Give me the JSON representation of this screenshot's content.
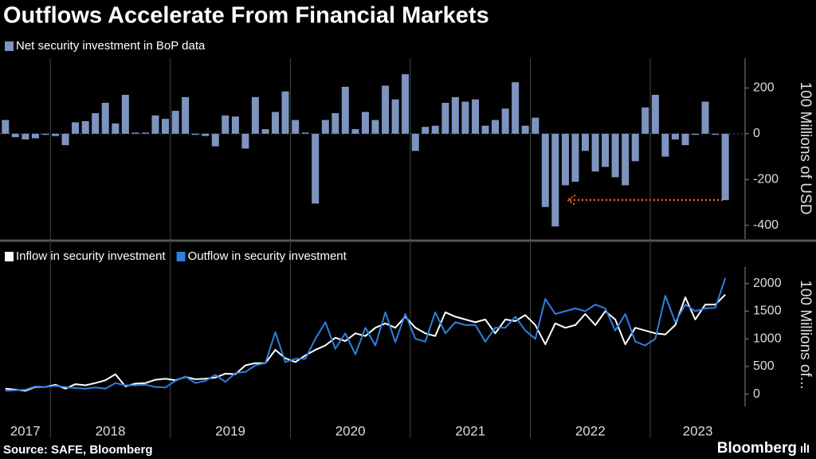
{
  "title": "Outflows Accelerate From Financial Markets",
  "source": "Source: SAFE, Bloomberg",
  "brand": "Bloomberg",
  "chart_data": [
    {
      "type": "bar",
      "y_label": "100 Millions of USD",
      "xlim": [
        2017.58,
        2023.79
      ],
      "ylim": [
        -460,
        330
      ],
      "yticks": [
        -400,
        -200,
        0,
        200
      ],
      "x": [
        2017.625,
        2017.708,
        2017.792,
        2017.875,
        2017.958,
        2018.042,
        2018.125,
        2018.208,
        2018.292,
        2018.375,
        2018.458,
        2018.542,
        2018.625,
        2018.708,
        2018.792,
        2018.875,
        2018.958,
        2019.042,
        2019.125,
        2019.208,
        2019.292,
        2019.375,
        2019.458,
        2019.542,
        2019.625,
        2019.708,
        2019.792,
        2019.875,
        2019.958,
        2020.042,
        2020.125,
        2020.208,
        2020.292,
        2020.375,
        2020.458,
        2020.542,
        2020.625,
        2020.708,
        2020.792,
        2020.875,
        2020.958,
        2021.042,
        2021.125,
        2021.208,
        2021.292,
        2021.375,
        2021.458,
        2021.542,
        2021.625,
        2021.708,
        2021.792,
        2021.875,
        2021.958,
        2022.042,
        2022.125,
        2022.208,
        2022.292,
        2022.375,
        2022.458,
        2022.542,
        2022.625,
        2022.708,
        2022.792,
        2022.875,
        2022.958,
        2023.042,
        2023.125,
        2023.208,
        2023.292,
        2023.375,
        2023.458,
        2023.542,
        2023.625
      ],
      "series": [
        {
          "name": "Net security investment in BoP data",
          "color": "#7d94bf",
          "values": [
            60,
            -15,
            -25,
            -20,
            -5,
            -10,
            -50,
            50,
            55,
            90,
            135,
            45,
            170,
            5,
            5,
            80,
            65,
            100,
            160,
            -5,
            -10,
            -55,
            80,
            75,
            -65,
            160,
            20,
            95,
            185,
            60,
            5,
            -305,
            60,
            90,
            205,
            20,
            95,
            60,
            210,
            150,
            260,
            -75,
            30,
            35,
            135,
            160,
            140,
            150,
            35,
            60,
            110,
            225,
            35,
            70,
            -320,
            -405,
            -225,
            -210,
            -75,
            -165,
            -145,
            -190,
            -225,
            -120,
            115,
            170,
            -100,
            -25,
            -50,
            -5,
            140,
            -5,
            -290
          ]
        }
      ]
    },
    {
      "type": "line",
      "y_label": "100 Millions of...",
      "xlim": [
        2017.58,
        2023.79
      ],
      "xticks": [
        2018,
        2019,
        2020,
        2021,
        2022,
        2023
      ],
      "x_labels": [
        "2017",
        "2018",
        "2019",
        "2020",
        "2021",
        "2022",
        "2023"
      ],
      "ylim": [
        -150,
        2300
      ],
      "yticks": [
        0,
        500,
        1000,
        1500,
        2000
      ],
      "x": [
        2017.625,
        2017.708,
        2017.792,
        2017.875,
        2017.958,
        2018.042,
        2018.125,
        2018.208,
        2018.292,
        2018.375,
        2018.458,
        2018.542,
        2018.625,
        2018.708,
        2018.792,
        2018.875,
        2018.958,
        2019.042,
        2019.125,
        2019.208,
        2019.292,
        2019.375,
        2019.458,
        2019.542,
        2019.625,
        2019.708,
        2019.792,
        2019.875,
        2019.958,
        2020.042,
        2020.125,
        2020.208,
        2020.292,
        2020.375,
        2020.458,
        2020.542,
        2020.625,
        2020.708,
        2020.792,
        2020.875,
        2020.958,
        2021.042,
        2021.125,
        2021.208,
        2021.292,
        2021.375,
        2021.458,
        2021.542,
        2021.625,
        2021.708,
        2021.792,
        2021.875,
        2021.958,
        2022.042,
        2022.125,
        2022.208,
        2022.292,
        2022.375,
        2022.458,
        2022.542,
        2022.625,
        2022.708,
        2022.792,
        2022.875,
        2022.958,
        2023.042,
        2023.125,
        2023.208,
        2023.292,
        2023.375,
        2023.458,
        2023.542,
        2023.625
      ],
      "series": [
        {
          "name": "Inflow in security investment",
          "color": "#ffffff",
          "values": [
            100,
            80,
            60,
            130,
            130,
            170,
            100,
            180,
            160,
            200,
            250,
            360,
            140,
            190,
            200,
            260,
            280,
            250,
            310,
            270,
            280,
            300,
            370,
            360,
            520,
            560,
            560,
            800,
            650,
            580,
            700,
            800,
            880,
            1020,
            960,
            1100,
            1050,
            1200,
            1280,
            1200,
            1400,
            1200,
            1100,
            1050,
            1480,
            1400,
            1350,
            1300,
            1350,
            1100,
            1350,
            1320,
            1430,
            1250,
            900,
            1280,
            1200,
            1250,
            1450,
            1250,
            1500,
            1350,
            900,
            1200,
            1150,
            1100,
            1080,
            1250,
            1750,
            1350,
            1620,
            1620,
            1800
          ]
        },
        {
          "name": "Outflow in security investment",
          "color": "#2f7fe0",
          "values": [
            60,
            70,
            80,
            140,
            130,
            150,
            130,
            110,
            100,
            120,
            100,
            200,
            160,
            160,
            170,
            130,
            120,
            240,
            320,
            200,
            240,
            350,
            220,
            380,
            400,
            520,
            560,
            1120,
            580,
            640,
            640,
            1000,
            1300,
            820,
            1100,
            720,
            1200,
            880,
            1480,
            940,
            1450,
            1000,
            950,
            1480,
            1100,
            1300,
            1250,
            1250,
            950,
            1200,
            1200,
            1400,
            1150,
            1000,
            1720,
            1450,
            1500,
            1550,
            1500,
            1620,
            1550,
            1150,
            1450,
            950,
            880,
            1000,
            1780,
            1300,
            1620,
            1500,
            1550,
            1560,
            2100
          ]
        }
      ]
    }
  ]
}
